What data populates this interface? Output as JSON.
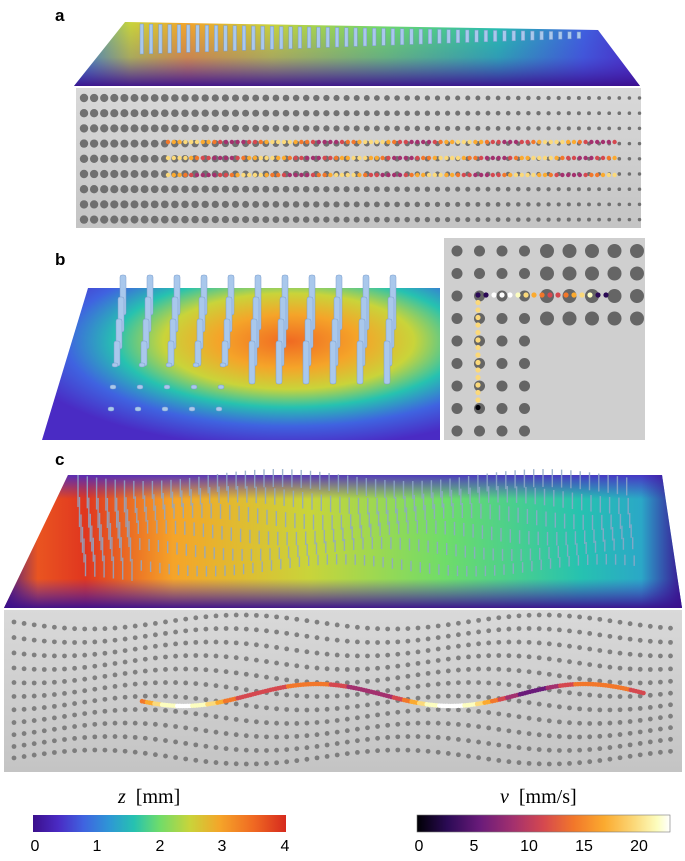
{
  "panels": [
    {
      "letter": "a"
    },
    {
      "letter": "b"
    },
    {
      "letter": "c"
    }
  ],
  "colorbars": {
    "z": {
      "symbol": "z",
      "unit": "[mm]",
      "ticks": [
        "0",
        "1",
        "2",
        "3",
        "4"
      ],
      "range": [
        0,
        4
      ],
      "colormap": [
        "#3b0f8c",
        "#4a2bc4",
        "#3f63e0",
        "#2e96d6",
        "#26c2b0",
        "#6fdc6a",
        "#c9d43a",
        "#f5a429",
        "#f06a22",
        "#d62a1e"
      ]
    },
    "v": {
      "symbol": "v",
      "unit": "[mm/s]",
      "ticks": [
        "0",
        "5",
        "10",
        "15",
        "20"
      ],
      "range": [
        0,
        23
      ],
      "colormap": [
        "#000004",
        "#2b0a55",
        "#6a1b7a",
        "#a3306e",
        "#d5484f",
        "#f2772a",
        "#fbaa2f",
        "#fbd97a",
        "#fcfdbf",
        "#ffffff"
      ]
    }
  }
}
